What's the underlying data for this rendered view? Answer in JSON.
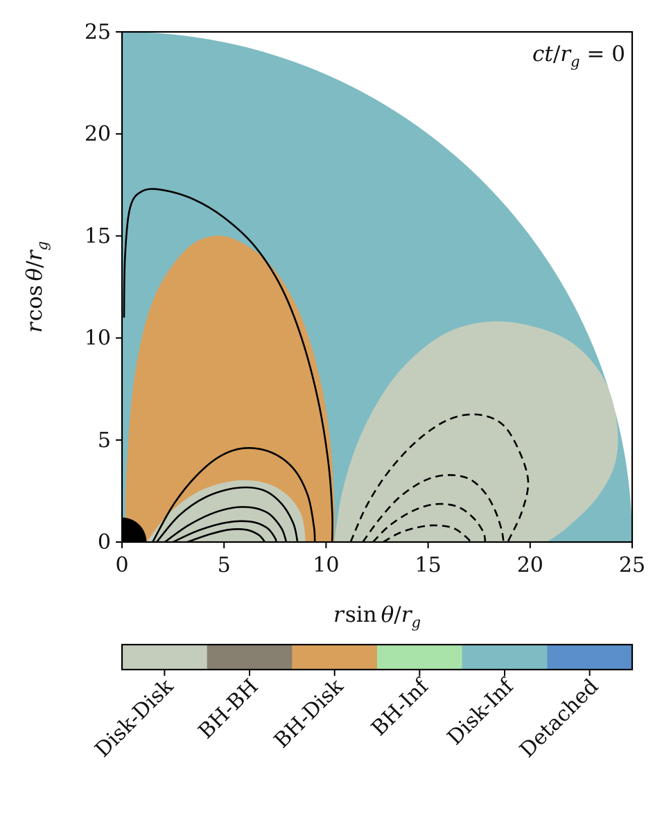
{
  "chart_data": {
    "type": "region-map",
    "title": "",
    "annotation": "ct/r_g = 0",
    "annotation_parts": {
      "var": "ct",
      "sep": "/",
      "r": "r",
      "sub": "g",
      "eq": " = ",
      "val": "0"
    },
    "xlabel": "r sin θ / r_g",
    "ylabel": "r cos θ / r_g",
    "xlabel_parts": {
      "r": "r",
      "fn": "sin",
      "theta": "θ",
      "slash": "/",
      "r2": "r",
      "sub": "g"
    },
    "ylabel_parts": {
      "r": "r",
      "fn": "cos",
      "theta": "θ",
      "slash": "/",
      "r2": "r",
      "sub": "g"
    },
    "xlim": [
      0,
      25
    ],
    "ylim": [
      0,
      25
    ],
    "xticks": [
      0,
      5,
      10,
      15,
      20,
      25
    ],
    "yticks": [
      0,
      5,
      10,
      15,
      20,
      25
    ],
    "xtick_labels": [
      "0",
      "5",
      "10",
      "15",
      "20",
      "25"
    ],
    "ytick_labels": [
      "0",
      "5",
      "10",
      "15",
      "20",
      "25"
    ],
    "domain_radius": 25,
    "black_hole_radius": 1.2,
    "categories": [
      {
        "name": "Disk-Disk",
        "color": "#c4cdbc"
      },
      {
        "name": "BH-BH",
        "color": "#878070"
      },
      {
        "name": "BH-Disk",
        "color": "#d9a05c"
      },
      {
        "name": "BH-Inf",
        "color": "#a9e3a9"
      },
      {
        "name": "Disk-Inf",
        "color": "#7fbbc3"
      },
      {
        "name": "Detached",
        "color": "#5b8fcb"
      }
    ],
    "regions": [
      {
        "category": "Disk-Inf",
        "shape": "quarter-disk",
        "radius": 25
      },
      {
        "category": "BH-Disk",
        "points": [
          [
            0.2,
            0
          ],
          [
            0.2,
            3
          ],
          [
            0.6,
            8
          ],
          [
            1.5,
            11.8
          ],
          [
            3,
            14.2
          ],
          [
            4.5,
            15
          ],
          [
            6,
            14.6
          ],
          [
            7.5,
            13.3
          ],
          [
            8.8,
            11
          ],
          [
            9.7,
            8
          ],
          [
            10.2,
            5
          ],
          [
            10.4,
            2
          ],
          [
            10.4,
            0
          ]
        ]
      },
      {
        "category": "Disk-Disk",
        "points": [
          [
            1.2,
            0
          ],
          [
            2.3,
            1.4
          ],
          [
            3.8,
            2.5
          ],
          [
            5.5,
            3
          ],
          [
            7,
            2.9
          ],
          [
            8.1,
            2.3
          ],
          [
            8.8,
            1.3
          ],
          [
            9,
            0
          ]
        ]
      },
      {
        "category": "Disk-Disk",
        "points": [
          [
            10.4,
            0
          ],
          [
            10.8,
            2.5
          ],
          [
            11.6,
            5
          ],
          [
            12.8,
            7.3
          ],
          [
            14.2,
            9
          ],
          [
            16,
            10.3
          ],
          [
            18,
            10.8
          ],
          [
            20,
            10.6
          ],
          [
            22,
            9.8
          ],
          [
            23.5,
            8.2
          ],
          [
            24.2,
            6.2
          ],
          [
            24.2,
            4
          ],
          [
            23.3,
            2.2
          ],
          [
            21.8,
            0.7
          ],
          [
            20.8,
            0
          ]
        ]
      }
    ],
    "field_lines_solid": [
      [
        [
          0.1,
          11
        ],
        [
          0.15,
          14
        ],
        [
          0.4,
          16.4
        ],
        [
          1,
          17.2
        ],
        [
          2,
          17.25
        ],
        [
          3.5,
          16.8
        ],
        [
          5,
          15.9
        ],
        [
          6.5,
          14.5
        ],
        [
          7.8,
          12.5
        ],
        [
          8.8,
          10
        ],
        [
          9.6,
          7
        ],
        [
          10.1,
          4
        ],
        [
          10.3,
          1.5
        ],
        [
          10.3,
          0
        ]
      ],
      [
        [
          1.5,
          0
        ],
        [
          2.5,
          1.8
        ],
        [
          3.6,
          3.2
        ],
        [
          4.8,
          4.2
        ],
        [
          6,
          4.6
        ],
        [
          7.3,
          4.4
        ],
        [
          8.4,
          3.6
        ],
        [
          9.1,
          2.3
        ],
        [
          9.4,
          0.8
        ],
        [
          9.45,
          0
        ]
      ],
      [
        [
          1.7,
          0
        ],
        [
          2.8,
          1.3
        ],
        [
          4.1,
          2.2
        ],
        [
          5.6,
          2.65
        ],
        [
          6.9,
          2.55
        ],
        [
          7.8,
          1.9
        ],
        [
          8.4,
          0.9
        ],
        [
          8.6,
          0
        ]
      ],
      [
        [
          2.1,
          0
        ],
        [
          3.3,
          0.85
        ],
        [
          4.7,
          1.5
        ],
        [
          6,
          1.72
        ],
        [
          7.1,
          1.45
        ],
        [
          7.8,
          0.7
        ],
        [
          8.05,
          0
        ]
      ],
      [
        [
          2.5,
          0
        ],
        [
          3.7,
          0.55
        ],
        [
          5.1,
          0.95
        ],
        [
          6.3,
          1
        ],
        [
          7.1,
          0.7
        ],
        [
          7.5,
          0.2
        ],
        [
          7.55,
          0
        ]
      ],
      [
        [
          3.2,
          0
        ],
        [
          4.2,
          0.35
        ],
        [
          5.2,
          0.6
        ],
        [
          6.1,
          0.6
        ],
        [
          6.7,
          0.35
        ],
        [
          7,
          0
        ]
      ]
    ],
    "field_lines_dashed": [
      [
        [
          11.2,
          0
        ],
        [
          12,
          1.8
        ],
        [
          13.1,
          3.5
        ],
        [
          14.5,
          5
        ],
        [
          16,
          6
        ],
        [
          17.4,
          6.25
        ],
        [
          18.6,
          5.8
        ],
        [
          19.4,
          4.6
        ],
        [
          19.9,
          3
        ],
        [
          19.6,
          1.5
        ],
        [
          19,
          0.2
        ],
        [
          18.9,
          0
        ]
      ],
      [
        [
          11.8,
          0
        ],
        [
          12.6,
          1.1
        ],
        [
          13.6,
          2.2
        ],
        [
          14.8,
          3
        ],
        [
          15.9,
          3.28
        ],
        [
          17,
          3.1
        ],
        [
          17.8,
          2.4
        ],
        [
          18.3,
          1.5
        ],
        [
          18.6,
          0.6
        ],
        [
          18.7,
          0
        ]
      ],
      [
        [
          12.3,
          0
        ],
        [
          13.1,
          0.8
        ],
        [
          14.2,
          1.5
        ],
        [
          15.3,
          1.85
        ],
        [
          16.4,
          1.75
        ],
        [
          17.2,
          1.2
        ],
        [
          17.7,
          0.5
        ],
        [
          17.8,
          0
        ]
      ],
      [
        [
          12.8,
          0
        ],
        [
          13.6,
          0.45
        ],
        [
          14.5,
          0.72
        ],
        [
          15.3,
          0.82
        ],
        [
          16.2,
          0.7
        ],
        [
          16.8,
          0.3
        ],
        [
          17.1,
          0
        ]
      ]
    ]
  }
}
